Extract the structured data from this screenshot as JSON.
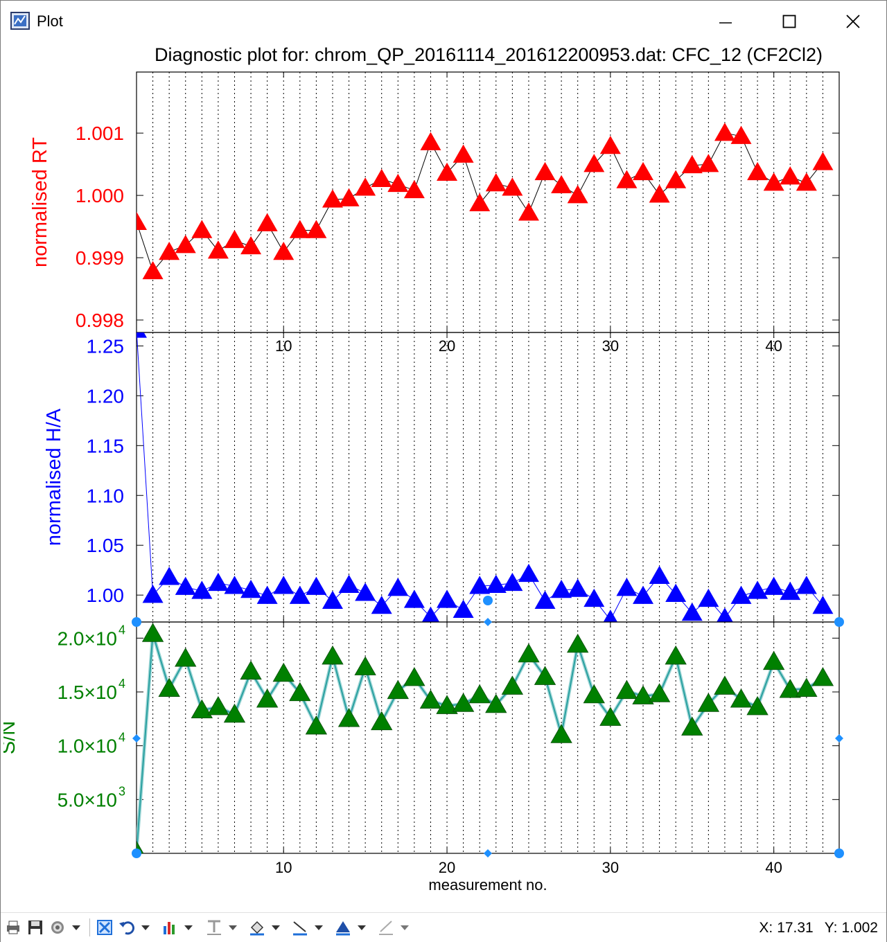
{
  "window": {
    "title": "Plot"
  },
  "chart_title": "Diagnostic plot for: chrom_QP_20161114_201612200953.dat: CFC_12 (CF2Cl2)",
  "status": {
    "x_label": "X:",
    "x_value": "17.31",
    "y_label": "Y:",
    "y_value": "1.002"
  },
  "icons": [
    "print-icon",
    "save-icon",
    "settings-icon",
    "dropdown-icon",
    "zoom-fit-icon",
    "undo-icon",
    "chart-type-icon",
    "text-tool-icon",
    "fill-tool-icon",
    "line-tool-icon",
    "marker-tool-icon",
    "pen-tool-icon"
  ],
  "colors": {
    "rt": "#ff0000",
    "ha": "#0000ff",
    "sn": "#008000",
    "sn_line": "#2aa0a0",
    "handle": "#1e90ff",
    "grid": "#000000"
  },
  "chart_data": [
    {
      "type": "line",
      "ylabel": "normalised RT",
      "ylim": [
        0.9978,
        1.00198
      ],
      "yticks": [
        0.998,
        0.999,
        1.0,
        1.001
      ],
      "ytick_labels": [
        "0.998",
        "0.999",
        "1.000",
        "1.001"
      ],
      "xlim": [
        1,
        44
      ],
      "xticks": [
        10,
        20,
        30,
        40
      ],
      "marker": "triangle",
      "color": "#ff0000",
      "x": [
        1,
        2,
        3,
        4,
        5,
        6,
        7,
        8,
        9,
        10,
        11,
        12,
        13,
        14,
        15,
        16,
        17,
        18,
        19,
        20,
        21,
        22,
        23,
        24,
        25,
        26,
        27,
        28,
        29,
        30,
        31,
        32,
        33,
        34,
        35,
        36,
        37,
        38,
        39,
        40,
        41,
        42,
        43
      ],
      "values": [
        0.99957,
        0.99878,
        0.99909,
        0.9992,
        0.99944,
        0.99911,
        0.99928,
        0.99918,
        0.99955,
        0.99909,
        0.99944,
        0.99944,
        0.99993,
        0.99995,
        1.00012,
        1.00026,
        1.00018,
        1.00008,
        1.00085,
        1.00036,
        1.00065,
        0.99987,
        1.00019,
        1.00012,
        0.99972,
        1.00037,
        1.00016,
        1.0,
        1.0005,
        1.00079,
        1.00024,
        1.00037,
        1.00001,
        1.00024,
        1.00048,
        1.0005,
        1.001,
        1.00095,
        1.00037,
        1.0002,
        1.0003,
        1.0002,
        1.00053
      ]
    },
    {
      "type": "line",
      "ylabel": "normalised H/A",
      "ylim": [
        0.973,
        1.2635
      ],
      "yticks": [
        1.0,
        1.05,
        1.1,
        1.15,
        1.2,
        1.25
      ],
      "ytick_labels": [
        "1.00",
        "1.05",
        "1.10",
        "1.15",
        "1.20",
        "1.25"
      ],
      "xlim": [
        1,
        44
      ],
      "xticks": [
        10,
        20,
        30,
        40
      ],
      "xtick_labels": [
        "10",
        "20",
        "30",
        "40"
      ],
      "marker": "triangle",
      "color": "#0000ff",
      "x": [
        1,
        2,
        3,
        4,
        5,
        6,
        7,
        8,
        9,
        10,
        11,
        12,
        13,
        14,
        15,
        16,
        17,
        18,
        19,
        20,
        21,
        22,
        23,
        24,
        25,
        26,
        27,
        28,
        29,
        30,
        31,
        32,
        33,
        34,
        35,
        36,
        37,
        38,
        39,
        40,
        41,
        42,
        43
      ],
      "values": [
        1.266,
        1.0,
        1.018,
        1.008,
        1.004,
        1.012,
        1.009,
        1.005,
        0.999,
        1.009,
        0.999,
        1.008,
        0.994,
        1.01,
        1.002,
        0.989,
        1.007,
        0.995,
        0.978,
        0.995,
        0.985,
        1.009,
        1.01,
        1.012,
        1.021,
        0.994,
        1.005,
        1.006,
        0.996,
        0.975,
        1.007,
        0.999,
        1.019,
        1.001,
        0.982,
        0.996,
        0.977,
        0.999,
        1.004,
        1.008,
        1.003,
        1.009,
        0.989
      ]
    },
    {
      "type": "line",
      "ylabel": "S/N",
      "xlabel": "measurement no.",
      "ylim": [
        0,
        21500
      ],
      "yticks": [
        5000,
        10000,
        15000,
        20000
      ],
      "ytick_labels": [
        [
          "5.0×10",
          "3"
        ],
        [
          "1.0×10",
          "4"
        ],
        [
          "1.5×10",
          "4"
        ],
        [
          "2.0×10",
          "4"
        ]
      ],
      "xlim": [
        1,
        44
      ],
      "xticks": [
        10,
        20,
        30,
        40
      ],
      "xtick_labels": [
        "10",
        "20",
        "30",
        "40"
      ],
      "marker": "triangle",
      "color": "#008000",
      "x": [
        1,
        2,
        3,
        4,
        5,
        6,
        7,
        8,
        9,
        10,
        11,
        12,
        13,
        14,
        15,
        16,
        17,
        18,
        19,
        20,
        21,
        22,
        23,
        24,
        25,
        26,
        27,
        28,
        29,
        30,
        31,
        32,
        33,
        34,
        35,
        36,
        37,
        38,
        39,
        40,
        41,
        42,
        43
      ],
      "values": [
        150,
        20400,
        15300,
        18100,
        13300,
        13600,
        12900,
        16900,
        14300,
        16700,
        14900,
        11800,
        18300,
        12500,
        17300,
        12200,
        15100,
        16300,
        14200,
        13700,
        13900,
        14700,
        13800,
        15500,
        18500,
        16400,
        11000,
        19400,
        14700,
        12600,
        15100,
        14600,
        14800,
        18300,
        11700,
        13900,
        15500,
        14300,
        13600,
        17800,
        15200,
        15300,
        16300
      ]
    }
  ]
}
